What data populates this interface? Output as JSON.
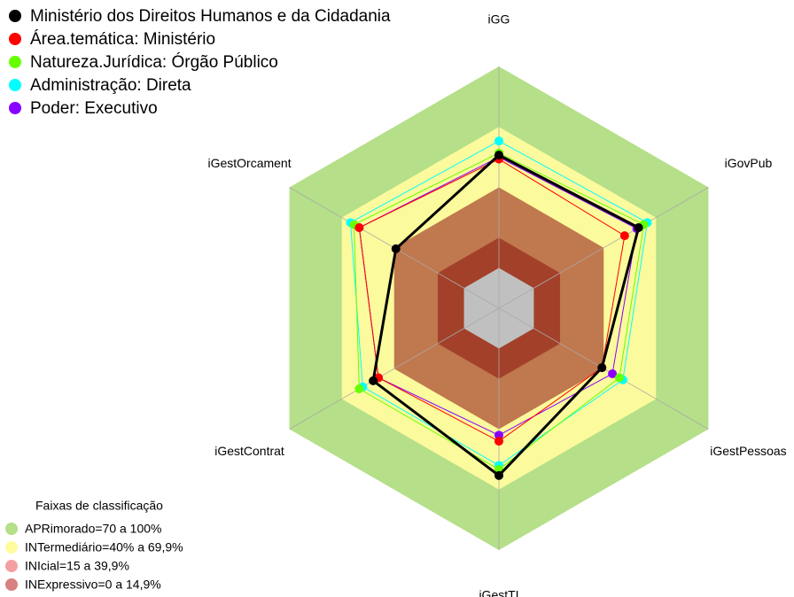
{
  "chart_data": {
    "type": "radar",
    "categories": [
      "iGG",
      "iGovPub",
      "iGestPessoas",
      "iGestTI",
      "iGestContrat",
      "iGestOrcament"
    ],
    "rlim": [
      -20,
      100
    ],
    "series": [
      {
        "name": "Ministério dos Direitos Humanos e da Cidadania",
        "color": "#000000",
        "values": [
          56,
          60,
          39,
          63,
          52,
          39
        ]
      },
      {
        "name": "Área.temática: Ministério",
        "color": "#ff0000",
        "values": [
          54,
          52,
          39,
          46,
          49,
          60
        ]
      },
      {
        "name": "Natureza.Jurídica: Órgão Público",
        "color": "#66ff00",
        "values": [
          57,
          63,
          49,
          60,
          60,
          63
        ]
      },
      {
        "name": "Administração: Direta",
        "color": "#00ffff",
        "values": [
          63,
          65,
          51,
          58,
          58,
          65
        ]
      },
      {
        "name": "Poder: Executivo",
        "color": "#8800ff",
        "values": [
          55,
          59,
          45,
          43,
          49,
          60
        ]
      }
    ],
    "bands_title": "Faixas de classificação",
    "bands": [
      {
        "label": "APRimorado=70 a 100%",
        "from": 70,
        "color": "#b5df88",
        "legend_color": "#b5df88"
      },
      {
        "label": "INTermediário=40% a 69,9%",
        "from": 40,
        "color": "#fbfa9c",
        "legend_color": "#fdfd9e"
      },
      {
        "label": "INIcial=15 a 39,9%",
        "from": 15,
        "color": "#c0784e",
        "legend_color": "#f4a0a0"
      },
      {
        "label": "INExpressivo=0 a 14,9%",
        "from": 0,
        "color": "#a3402a",
        "legend_color": "#d98080"
      }
    ]
  }
}
